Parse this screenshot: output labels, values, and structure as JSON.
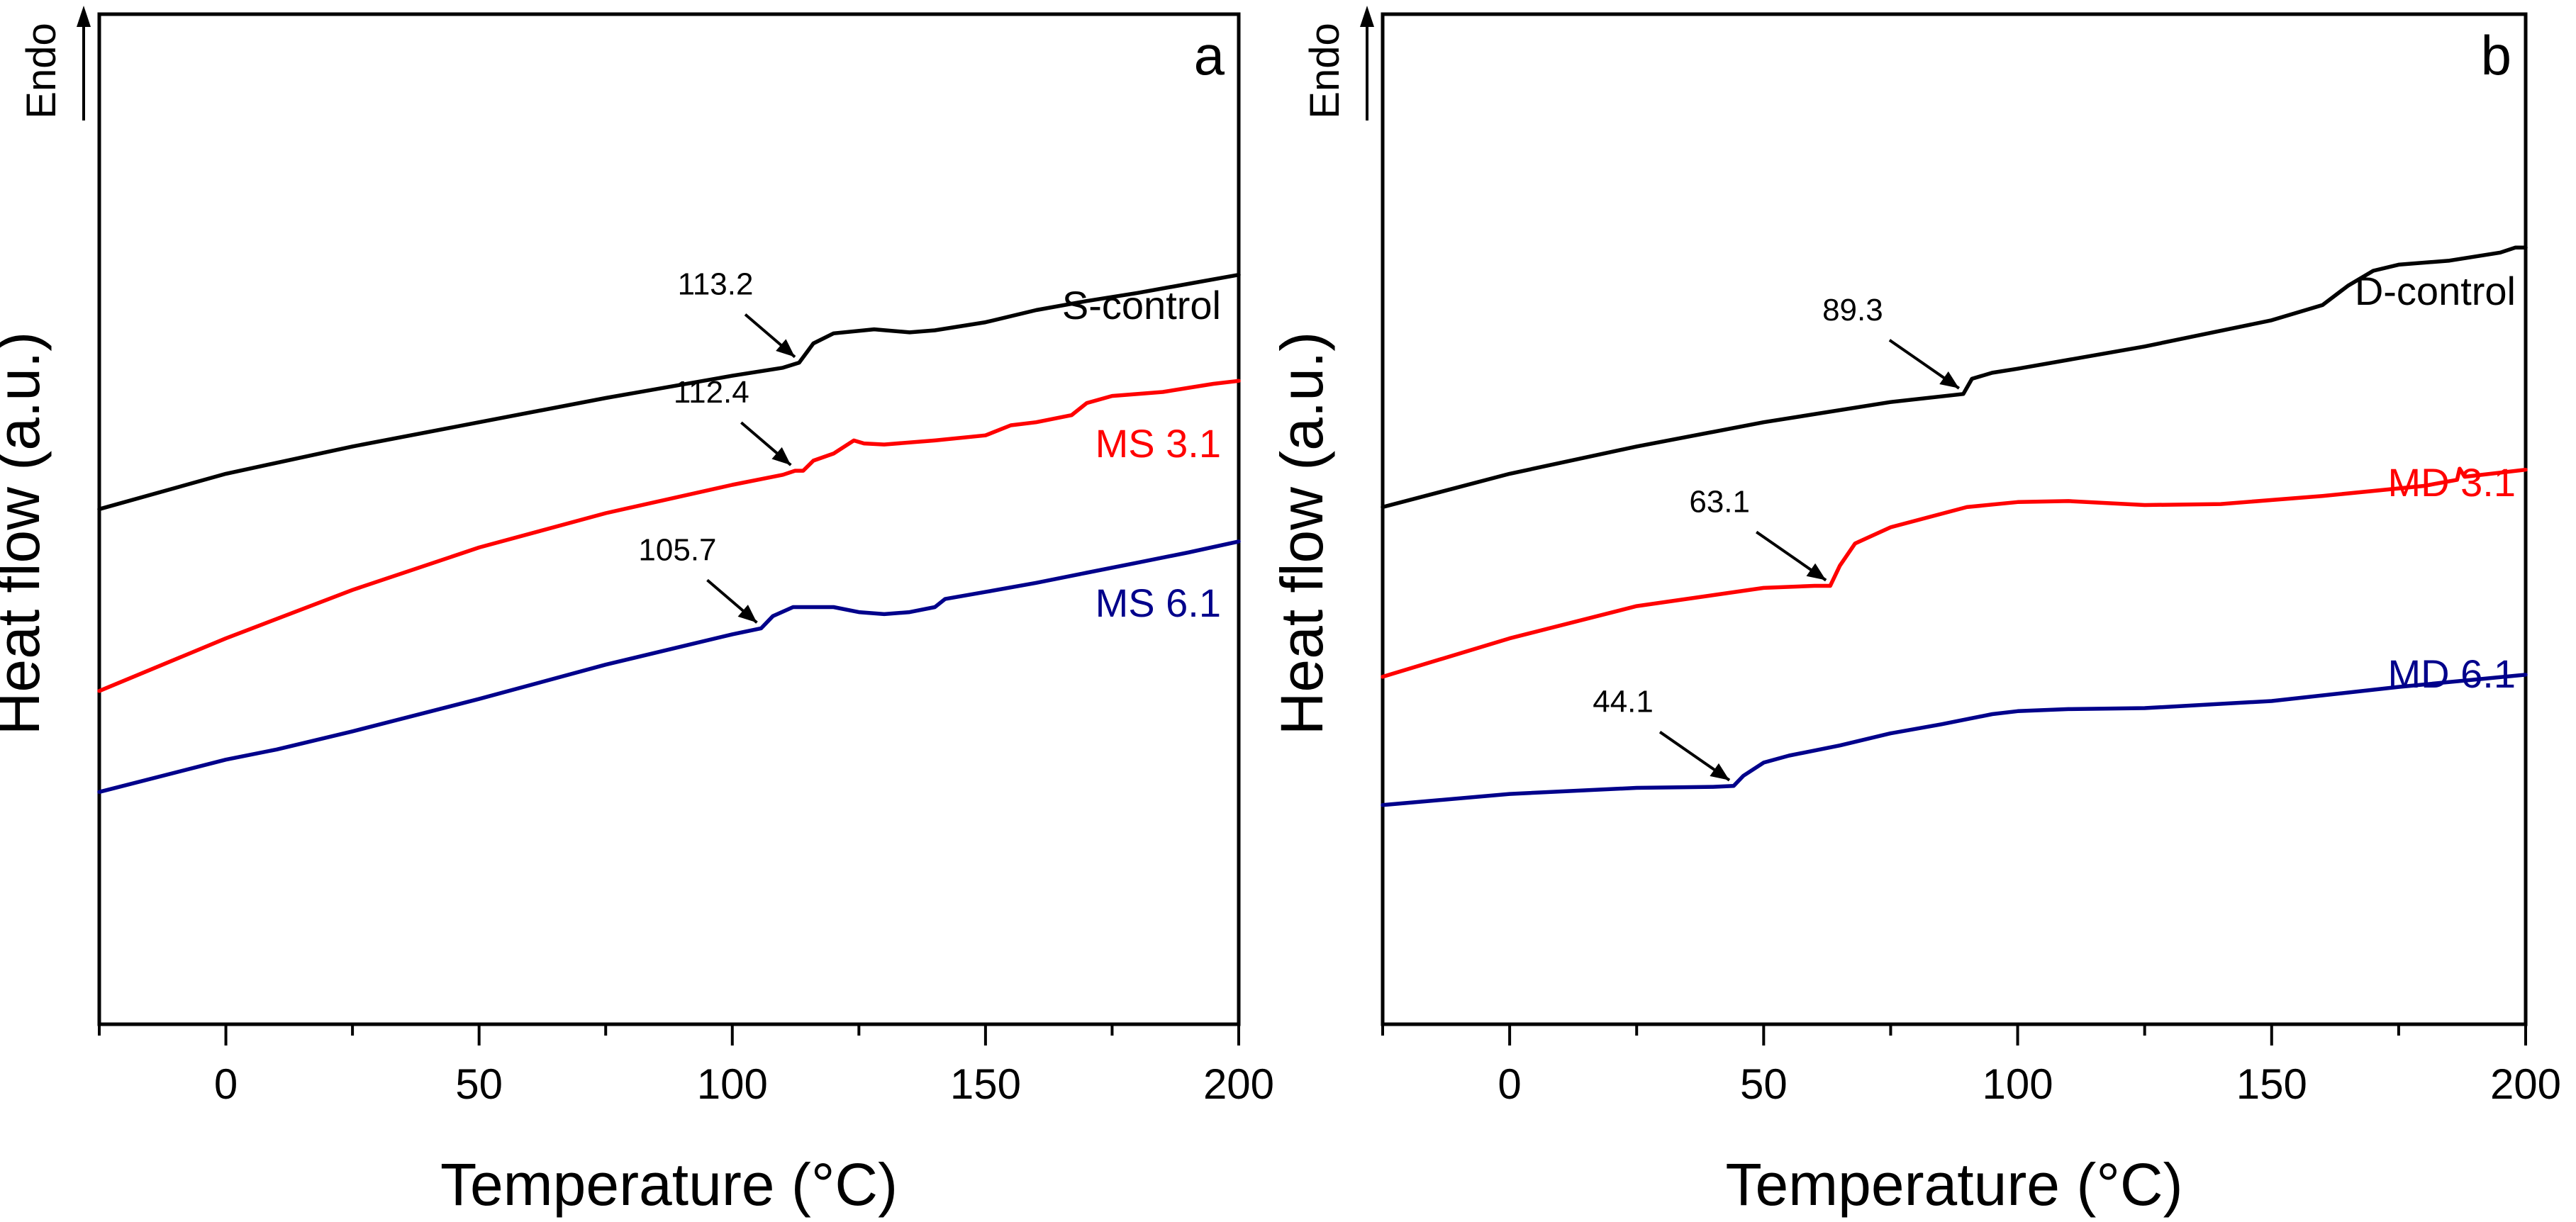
{
  "chart_data": [
    {
      "type": "line",
      "panel": "a",
      "xlabel": "Temperature (°C)",
      "ylabel": "Heat flow (a.u.)",
      "indicator": "Endo",
      "xlim": [
        -25,
        200
      ],
      "ylim": [
        0,
        100
      ],
      "xticks": [
        0,
        50,
        100,
        150,
        200
      ],
      "grid": false,
      "series": [
        {
          "name": "S-control",
          "color": "#000000",
          "x": [
            -25,
            0,
            25,
            50,
            75,
            100,
            110,
            113.2,
            116,
            120,
            128,
            135,
            140,
            150,
            160,
            170,
            180,
            190,
            200
          ],
          "y": [
            51.0,
            54.5,
            57.2,
            59.6,
            62.0,
            64.2,
            65.0,
            65.5,
            67.4,
            68.4,
            68.8,
            68.5,
            68.7,
            69.5,
            70.7,
            71.6,
            72.4,
            73.3,
            74.2
          ]
        },
        {
          "name": "MS 3.1",
          "color": "#ff0000",
          "x": [
            -25,
            0,
            25,
            50,
            75,
            100,
            110,
            112.4,
            114,
            116,
            120,
            124,
            126,
            130,
            140,
            150,
            155,
            160,
            167,
            170,
            175,
            185,
            195,
            200
          ],
          "y": [
            33.0,
            38.2,
            43.0,
            47.2,
            50.6,
            53.4,
            54.4,
            54.8,
            54.8,
            55.8,
            56.5,
            57.8,
            57.5,
            57.4,
            57.8,
            58.3,
            59.3,
            59.6,
            60.3,
            61.5,
            62.2,
            62.6,
            63.4,
            63.7
          ]
        },
        {
          "name": "MS 6.1",
          "color": "#00008b",
          "x": [
            -25,
            0,
            10,
            25,
            50,
            75,
            100,
            105.7,
            108,
            112,
            120,
            125,
            130,
            135,
            140,
            142,
            150,
            160,
            170,
            180,
            190,
            200
          ],
          "y": [
            23.0,
            26.2,
            27.2,
            29.0,
            32.2,
            35.6,
            38.6,
            39.2,
            40.4,
            41.3,
            41.3,
            40.8,
            40.6,
            40.8,
            41.3,
            42.1,
            42.8,
            43.7,
            44.7,
            45.7,
            46.7,
            47.8
          ]
        }
      ],
      "annotations": [
        {
          "text": "113.2",
          "series": "S-control",
          "x": 113.2
        },
        {
          "text": "112.4",
          "series": "MS 3.1",
          "x": 112.4
        },
        {
          "text": "105.7",
          "series": "MS 6.1",
          "x": 105.7
        }
      ]
    },
    {
      "type": "line",
      "panel": "b",
      "xlabel": "Temperature (°C)",
      "ylabel": "Heat flow (a.u.)",
      "indicator": "Endo",
      "xlim": [
        -25,
        200
      ],
      "ylim": [
        0,
        100
      ],
      "xticks": [
        0,
        50,
        100,
        150,
        200
      ],
      "grid": false,
      "series": [
        {
          "name": "D-control",
          "color": "#000000",
          "x": [
            -25,
            0,
            25,
            50,
            75,
            89.3,
            91,
            95,
            100,
            125,
            150,
            160,
            165,
            170,
            175,
            185,
            195,
            198,
            200
          ],
          "y": [
            51.2,
            54.5,
            57.2,
            59.6,
            61.6,
            62.4,
            63.9,
            64.5,
            64.9,
            67.1,
            69.7,
            71.2,
            73.1,
            74.6,
            75.2,
            75.6,
            76.4,
            76.9,
            76.9
          ]
        },
        {
          "name": "MD 3.1",
          "color": "#ff0000",
          "x": [
            -25,
            0,
            25,
            50,
            60,
            63.1,
            65,
            68,
            75,
            90,
            100,
            110,
            125,
            140,
            160,
            180,
            186.5,
            187,
            188,
            200
          ],
          "y": [
            34.4,
            38.2,
            41.4,
            43.2,
            43.4,
            43.4,
            45.4,
            47.6,
            49.2,
            51.2,
            51.7,
            51.8,
            51.4,
            51.5,
            52.3,
            53.3,
            53.9,
            55.0,
            54.2,
            54.9
          ]
        },
        {
          "name": "MD 6.1",
          "color": "#00008b",
          "x": [
            -25,
            0,
            25,
            40,
            44.1,
            46,
            50,
            55,
            65,
            75,
            85,
            95,
            100,
            110,
            125,
            150,
            175,
            200
          ],
          "y": [
            21.7,
            22.8,
            23.4,
            23.5,
            23.6,
            24.6,
            25.9,
            26.6,
            27.6,
            28.8,
            29.7,
            30.7,
            31.0,
            31.2,
            31.3,
            32.0,
            33.4,
            34.6
          ]
        }
      ],
      "annotations": [
        {
          "text": "89.3",
          "series": "D-control",
          "x": 89.3
        },
        {
          "text": "63.1",
          "series": "MD 3.1",
          "x": 63.1
        },
        {
          "text": "44.1",
          "series": "MD 6.1",
          "x": 44.1
        }
      ]
    }
  ]
}
